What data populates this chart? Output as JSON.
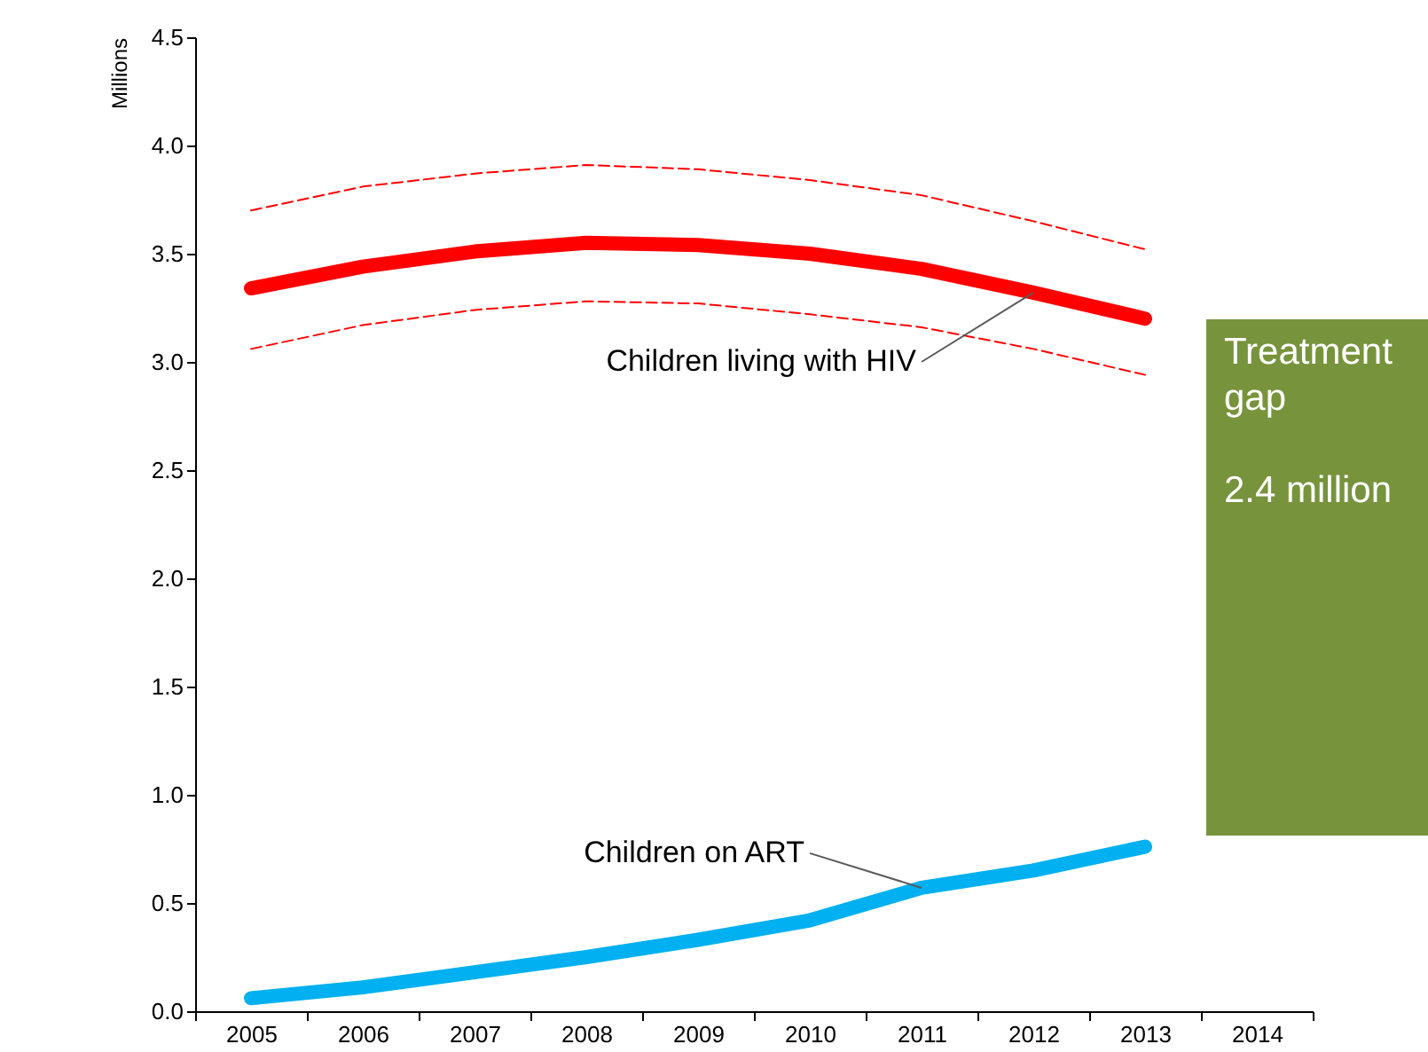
{
  "chart_data": {
    "type": "line",
    "ylabel": "Millions",
    "categories": [
      "2005",
      "2006",
      "2007",
      "2008",
      "2009",
      "2010",
      "2011",
      "2012",
      "2013",
      "2014"
    ],
    "series": [
      {
        "name": "Children living with HIV",
        "color": "#ff0000",
        "values": [
          3.34,
          3.44,
          3.51,
          3.55,
          3.54,
          3.5,
          3.43,
          3.32,
          3.2,
          null
        ]
      },
      {
        "color": "#ff0000",
        "line_style": "dashed",
        "values": [
          3.7,
          3.81,
          3.87,
          3.91,
          3.89,
          3.84,
          3.77,
          3.65,
          3.52,
          null
        ]
      },
      {
        "color": "#ff0000",
        "line_style": "dashed",
        "values": [
          3.06,
          3.17,
          3.24,
          3.28,
          3.27,
          3.22,
          3.16,
          3.06,
          2.94,
          null
        ]
      },
      {
        "name": "Children on ART",
        "color": "#00b0f0",
        "values": [
          0.06,
          0.11,
          0.18,
          0.25,
          0.33,
          0.42,
          0.57,
          0.65,
          0.76,
          null
        ]
      }
    ],
    "ylim": [
      0,
      4.5
    ],
    "yticks": [
      {
        "value": 0,
        "label": "0.0"
      },
      {
        "value": 0.5,
        "label": "0.5"
      },
      {
        "value": 1,
        "label": "1.0"
      },
      {
        "value": 1.5,
        "label": "1.5"
      },
      {
        "value": 2,
        "label": "2.0"
      },
      {
        "value": 2.5,
        "label": "2.5"
      },
      {
        "value": 3,
        "label": "3.0"
      },
      {
        "value": 3.5,
        "label": "3.5"
      },
      {
        "value": 4,
        "label": "4.0"
      },
      {
        "value": 4.5,
        "label": "4.5"
      }
    ],
    "grid": false,
    "line_style": "solid",
    "marker": "none",
    "annotations": [
      "Treatment gap",
      "2.4 million"
    ]
  }
}
